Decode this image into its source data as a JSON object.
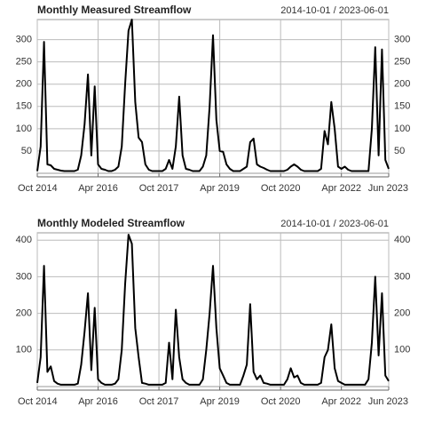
{
  "chart_data": [
    {
      "type": "line",
      "title": "Monthly Measured Streamflow",
      "subtitle": "2014-10-01 / 2023-06-01",
      "color": "#000000",
      "grid": true,
      "x": [
        "2014-10",
        "2014-11",
        "2014-12",
        "2015-01",
        "2015-02",
        "2015-03",
        "2015-04",
        "2015-05",
        "2015-06",
        "2015-07",
        "2015-08",
        "2015-09",
        "2015-10",
        "2015-11",
        "2015-12",
        "2016-01",
        "2016-02",
        "2016-03",
        "2016-04",
        "2016-05",
        "2016-06",
        "2016-07",
        "2016-08",
        "2016-09",
        "2016-10",
        "2016-11",
        "2016-12",
        "2017-01",
        "2017-02",
        "2017-03",
        "2017-04",
        "2017-05",
        "2017-06",
        "2017-07",
        "2017-08",
        "2017-09",
        "2017-10",
        "2017-11",
        "2017-12",
        "2018-01",
        "2018-02",
        "2018-03",
        "2018-04",
        "2018-05",
        "2018-06",
        "2018-07",
        "2018-08",
        "2018-09",
        "2018-10",
        "2018-11",
        "2018-12",
        "2019-01",
        "2019-02",
        "2019-03",
        "2019-04",
        "2019-05",
        "2019-06",
        "2019-07",
        "2019-08",
        "2019-09",
        "2019-10",
        "2019-11",
        "2019-12",
        "2020-01",
        "2020-02",
        "2020-03",
        "2020-04",
        "2020-05",
        "2020-06",
        "2020-07",
        "2020-08",
        "2020-09",
        "2020-10",
        "2020-11",
        "2020-12",
        "2021-01",
        "2021-02",
        "2021-03",
        "2021-04",
        "2021-05",
        "2021-06",
        "2021-07",
        "2021-08",
        "2021-09",
        "2021-10",
        "2021-11",
        "2021-12",
        "2022-01",
        "2022-02",
        "2022-03",
        "2022-04",
        "2022-05",
        "2022-06",
        "2022-07",
        "2022-08",
        "2022-09",
        "2022-10",
        "2022-11",
        "2022-12",
        "2023-01",
        "2023-02",
        "2023-03",
        "2023-04",
        "2023-05",
        "2023-06"
      ],
      "values": [
        5,
        60,
        295,
        20,
        18,
        10,
        8,
        6,
        5,
        5,
        5,
        5,
        8,
        40,
        110,
        222,
        40,
        195,
        20,
        10,
        8,
        5,
        5,
        8,
        15,
        60,
        200,
        320,
        345,
        160,
        80,
        70,
        20,
        8,
        5,
        5,
        5,
        5,
        10,
        30,
        10,
        60,
        172,
        40,
        10,
        8,
        5,
        5,
        5,
        15,
        40,
        150,
        310,
        120,
        50,
        48,
        20,
        10,
        5,
        5,
        5,
        10,
        15,
        70,
        78,
        20,
        15,
        12,
        8,
        5,
        5,
        5,
        5,
        5,
        8,
        15,
        20,
        15,
        8,
        5,
        5,
        5,
        5,
        5,
        10,
        95,
        65,
        160,
        100,
        15,
        10,
        15,
        8,
        5,
        5,
        5,
        5,
        5,
        5,
        100,
        283,
        40,
        278,
        30,
        10
      ],
      "ylim": [
        0,
        345
      ],
      "yticks": [
        50,
        100,
        150,
        200,
        250,
        300
      ],
      "xticks": [
        {
          "value": "2014-10",
          "label": "Oct 2014"
        },
        {
          "value": "2016-04",
          "label": "Apr 2016"
        },
        {
          "value": "2017-10",
          "label": "Oct 2017"
        },
        {
          "value": "2019-04",
          "label": "Apr 2019"
        },
        {
          "value": "2020-10",
          "label": "Oct 2020"
        },
        {
          "value": "2022-04",
          "label": "Apr 2022"
        },
        {
          "value": "2023-06",
          "label": "Jun 2023"
        }
      ]
    },
    {
      "type": "line",
      "title": "Monthly Modeled Streamflow",
      "subtitle": "2014-10-01 / 2023-06-01",
      "color": "#000000",
      "grid": true,
      "x": [
        "2014-10",
        "2014-11",
        "2014-12",
        "2015-01",
        "2015-02",
        "2015-03",
        "2015-04",
        "2015-05",
        "2015-06",
        "2015-07",
        "2015-08",
        "2015-09",
        "2015-10",
        "2015-11",
        "2015-12",
        "2016-01",
        "2016-02",
        "2016-03",
        "2016-04",
        "2016-05",
        "2016-06",
        "2016-07",
        "2016-08",
        "2016-09",
        "2016-10",
        "2016-11",
        "2016-12",
        "2017-01",
        "2017-02",
        "2017-03",
        "2017-04",
        "2017-05",
        "2017-06",
        "2017-07",
        "2017-08",
        "2017-09",
        "2017-10",
        "2017-11",
        "2017-12",
        "2018-01",
        "2018-02",
        "2018-03",
        "2018-04",
        "2018-05",
        "2018-06",
        "2018-07",
        "2018-08",
        "2018-09",
        "2018-10",
        "2018-11",
        "2018-12",
        "2019-01",
        "2019-02",
        "2019-03",
        "2019-04",
        "2019-05",
        "2019-06",
        "2019-07",
        "2019-08",
        "2019-09",
        "2019-10",
        "2019-11",
        "2019-12",
        "2020-01",
        "2020-02",
        "2020-03",
        "2020-04",
        "2020-05",
        "2020-06",
        "2020-07",
        "2020-08",
        "2020-09",
        "2020-10",
        "2020-11",
        "2020-12",
        "2021-01",
        "2021-02",
        "2021-03",
        "2021-04",
        "2021-05",
        "2021-06",
        "2021-07",
        "2021-08",
        "2021-09",
        "2021-10",
        "2021-11",
        "2021-12",
        "2022-01",
        "2022-02",
        "2022-03",
        "2022-04",
        "2022-05",
        "2022-06",
        "2022-07",
        "2022-08",
        "2022-09",
        "2022-10",
        "2022-11",
        "2022-12",
        "2023-01",
        "2023-02",
        "2023-03",
        "2023-04",
        "2023-05",
        "2023-06"
      ],
      "values": [
        10,
        80,
        330,
        40,
        55,
        15,
        8,
        5,
        5,
        5,
        5,
        5,
        8,
        60,
        150,
        255,
        45,
        215,
        20,
        10,
        5,
        5,
        5,
        8,
        20,
        100,
        280,
        415,
        390,
        160,
        80,
        10,
        8,
        5,
        5,
        5,
        5,
        5,
        10,
        120,
        20,
        210,
        80,
        20,
        10,
        5,
        5,
        5,
        5,
        20,
        100,
        200,
        330,
        160,
        50,
        30,
        10,
        5,
        5,
        5,
        5,
        30,
        60,
        225,
        40,
        20,
        30,
        10,
        8,
        5,
        5,
        5,
        5,
        5,
        20,
        50,
        25,
        30,
        10,
        5,
        5,
        5,
        5,
        5,
        10,
        80,
        100,
        170,
        50,
        15,
        10,
        5,
        5,
        5,
        5,
        5,
        5,
        5,
        20,
        120,
        300,
        85,
        255,
        30,
        15
      ],
      "ylim": [
        0,
        420
      ],
      "yticks": [
        100,
        200,
        300,
        400
      ],
      "xticks": [
        {
          "value": "2014-10",
          "label": "Oct 2014"
        },
        {
          "value": "2016-04",
          "label": "Apr 2016"
        },
        {
          "value": "2017-10",
          "label": "Oct 2017"
        },
        {
          "value": "2019-04",
          "label": "Apr 2019"
        },
        {
          "value": "2020-10",
          "label": "Oct 2020"
        },
        {
          "value": "2022-04",
          "label": "Apr 2022"
        },
        {
          "value": "2023-06",
          "label": "Jun 2023"
        }
      ]
    }
  ]
}
